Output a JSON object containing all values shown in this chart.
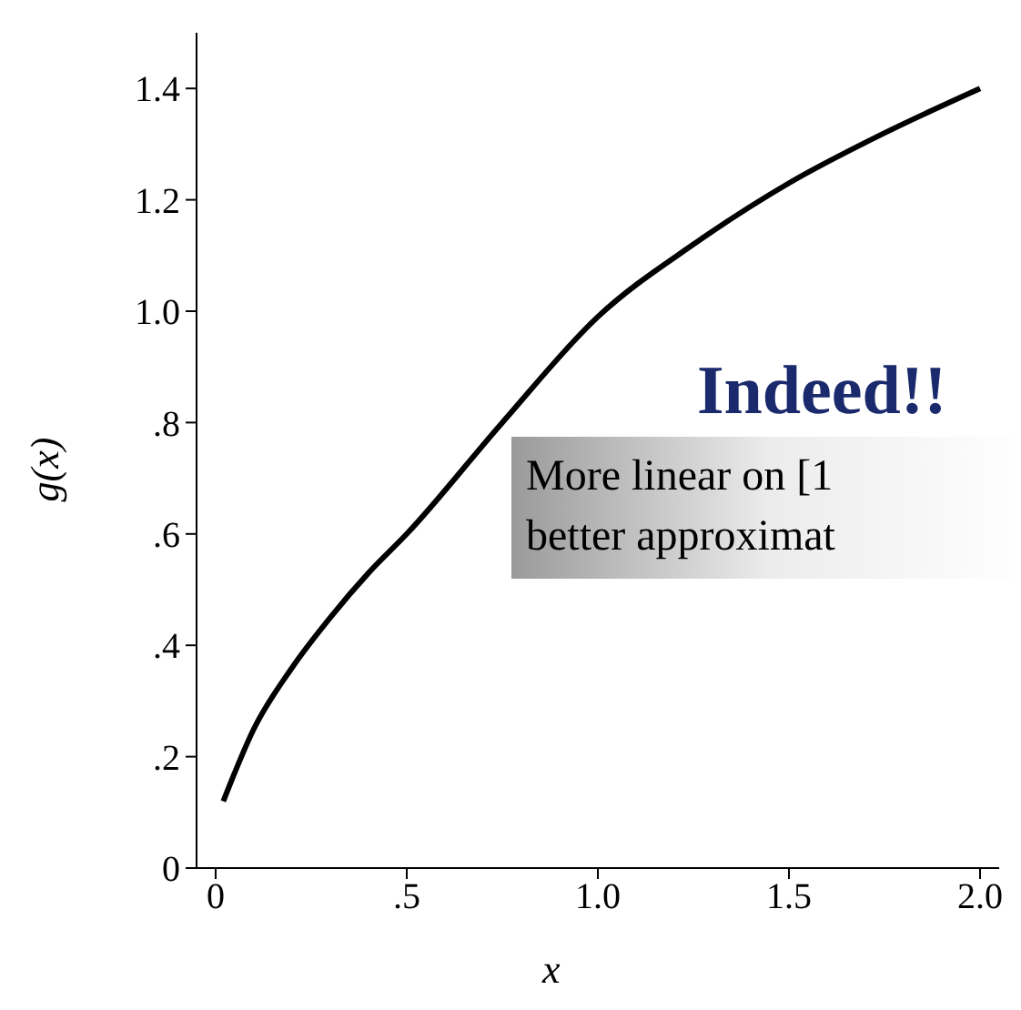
{
  "chart_data": {
    "type": "line",
    "xlabel": "x",
    "ylabel": "g(x)",
    "x": [
      0.02,
      0.1,
      0.2,
      0.3,
      0.4,
      0.5,
      0.75,
      1.0,
      1.25,
      1.5,
      1.75,
      2.0
    ],
    "series": [
      {
        "color": "#000000",
        "values": [
          0.12,
          0.25,
          0.36,
          0.45,
          0.53,
          0.6,
          0.8,
          0.99,
          1.12,
          1.23,
          1.32,
          1.4
        ]
      }
    ],
    "xlim": [
      -0.05,
      2.05
    ],
    "xticks": [
      0,
      {
        "value": 0.5,
        "label": ".5"
      },
      {
        "value": 1.0,
        "label": "1.0"
      },
      1.5,
      {
        "value": 2.0,
        "label": "2.0"
      }
    ],
    "ylim": [
      0,
      1.5
    ],
    "yticks": [
      0,
      {
        "value": 0.2,
        "label": ".2"
      },
      {
        "value": 0.4,
        "label": ".4"
      },
      {
        "value": 0.6,
        "label": ".6"
      },
      {
        "value": 0.8,
        "label": ".8"
      },
      {
        "value": 1.0,
        "label": "1.0"
      },
      {
        "value": 1.2,
        "label": "1.2"
      },
      {
        "value": 1.4,
        "label": "1.4"
      }
    ],
    "grid": false,
    "legend": false,
    "marker": "none",
    "line_style": "solid",
    "annotations": [
      "Indeed!!",
      "More linear on [1",
      "better approximat"
    ]
  }
}
